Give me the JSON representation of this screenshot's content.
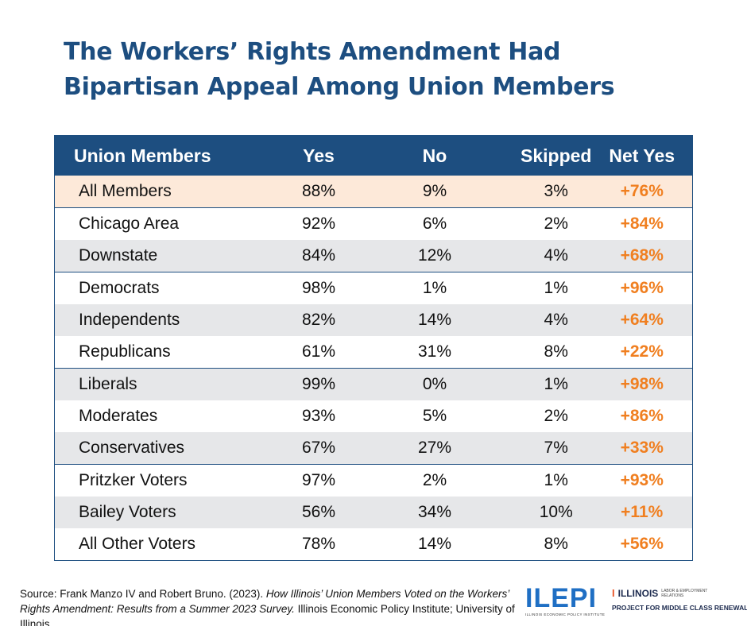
{
  "title_line1": "The Workers’ Rights Amendment Had",
  "title_line2": "Bipartisan Appeal Among Union Members",
  "table": {
    "headers": [
      "Union Members",
      "Yes",
      "No",
      "Skipped",
      "Net Yes"
    ],
    "rows": [
      [
        "All Members",
        "88%",
        "9%",
        "3%",
        "+76%"
      ],
      [
        "Chicago Area",
        "92%",
        "6%",
        "2%",
        "+84%"
      ],
      [
        "Downstate",
        "84%",
        "12%",
        "4%",
        "+68%"
      ],
      [
        "Democrats",
        "98%",
        "1%",
        "1%",
        "+96%"
      ],
      [
        "Independents",
        "82%",
        "14%",
        "4%",
        "+64%"
      ],
      [
        "Republicans",
        "61%",
        "31%",
        "8%",
        "+22%"
      ],
      [
        "Liberals",
        "99%",
        "0%",
        "1%",
        "+98%"
      ],
      [
        "Moderates",
        "93%",
        "5%",
        "2%",
        "+86%"
      ],
      [
        "Conservatives",
        "67%",
        "27%",
        "7%",
        "+33%"
      ],
      [
        "Pritzker Voters",
        "97%",
        "2%",
        "1%",
        "+93%"
      ],
      [
        "Bailey Voters",
        "56%",
        "34%",
        "10%",
        "+11%"
      ],
      [
        "All Other Voters",
        "78%",
        "14%",
        "8%",
        "+56%"
      ]
    ]
  },
  "source": {
    "prefix": "Source: Frank Manzo IV and Robert Bruno. (2023). ",
    "title_italic": "How Illinois’ Union Members Voted on the Workers’ Rights Amendment: Results from a Summer 2023 Survey.",
    "suffix": " Illinois Economic Policy Institute; University of Illinois."
  },
  "logos": {
    "ilepi": "ILEPI",
    "ilepi_sub": "ILLINOIS ECONOMIC POLICY INSTITUTE",
    "illinois": "ILLINOIS",
    "illinois_sub": "LABOR & EMPLOYMENT RELATIONS",
    "project": "PROJECT FOR MIDDLE CLASS RENEWAL"
  },
  "colors": {
    "header": "#1d4e80",
    "net_yes": "#f07f20",
    "highlight_row": "#fde9d9",
    "alt_row": "#e6e7e9"
  }
}
